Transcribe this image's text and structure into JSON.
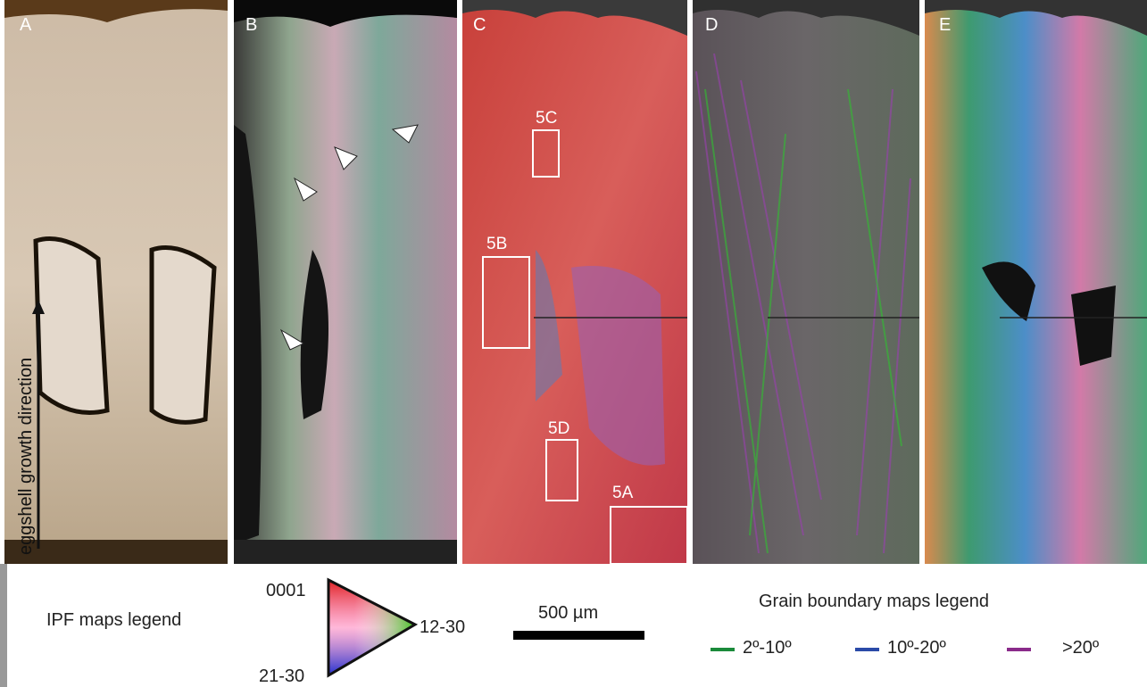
{
  "panels": [
    {
      "label": "A"
    },
    {
      "label": "B"
    },
    {
      "label": "C"
    },
    {
      "label": "D"
    },
    {
      "label": "E"
    }
  ],
  "regions": [
    {
      "label": "5C"
    },
    {
      "label": "5B"
    },
    {
      "label": "5D"
    },
    {
      "label": "5A"
    }
  ],
  "axis_label": "eggshell growth direction",
  "legend": {
    "ipf": {
      "title": "IPF maps legend",
      "corners": [
        "0001",
        "12-30",
        "21-30"
      ]
    },
    "scale_bar": "500 µm",
    "grain_boundary": {
      "title": "Grain boundary maps legend",
      "items": [
        "2º-10º",
        "10º-20º",
        ">20º"
      ]
    }
  }
}
